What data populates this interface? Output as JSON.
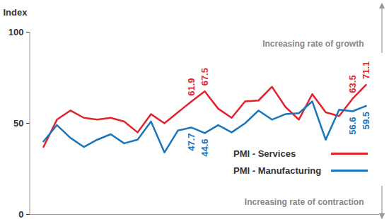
{
  "chart_data": {
    "type": "line",
    "y_label": "Index",
    "annotations": [
      "Increasing rate of growth",
      "Increasing rate of contraction"
    ],
    "categories": [
      null,
      null,
      null,
      null,
      null,
      null,
      null,
      null,
      null,
      null,
      null,
      null,
      null,
      null,
      null,
      null,
      null,
      null,
      null,
      null,
      null,
      null,
      null,
      null,
      null
    ],
    "series": [
      {
        "name": "PMI - Services",
        "color": "#e3232c",
        "values": [
          37,
          52,
          57,
          53,
          52,
          53,
          51,
          45,
          55,
          50,
          56,
          61.9,
          67.5,
          58,
          53,
          62,
          62.5,
          70,
          59,
          52,
          66,
          56,
          54,
          63.5,
          71.1
        ],
        "value_labels": [
          null,
          null,
          null,
          null,
          null,
          null,
          null,
          null,
          null,
          null,
          null,
          "61.9",
          "67.5",
          null,
          null,
          null,
          null,
          null,
          null,
          null,
          null,
          null,
          null,
          "63.5",
          "71.1"
        ]
      },
      {
        "name": "PMI - Manufacturing",
        "color": "#1a75bb",
        "values": [
          40,
          49,
          42,
          37,
          41,
          44,
          39,
          41,
          51,
          34,
          46,
          47.7,
          44.6,
          49,
          45,
          50,
          57,
          52,
          55,
          55.5,
          62,
          41,
          57.5,
          56.6,
          59.5
        ],
        "value_labels": [
          null,
          null,
          null,
          null,
          null,
          null,
          null,
          null,
          null,
          null,
          null,
          "47.7",
          "44.6",
          null,
          null,
          null,
          null,
          null,
          null,
          null,
          null,
          null,
          null,
          "56.6",
          "59.5"
        ]
      }
    ],
    "ylim": [
      0,
      100
    ],
    "yticks": [
      0,
      50,
      100
    ],
    "grid": false,
    "legend": "right",
    "tick_labels": "y"
  }
}
